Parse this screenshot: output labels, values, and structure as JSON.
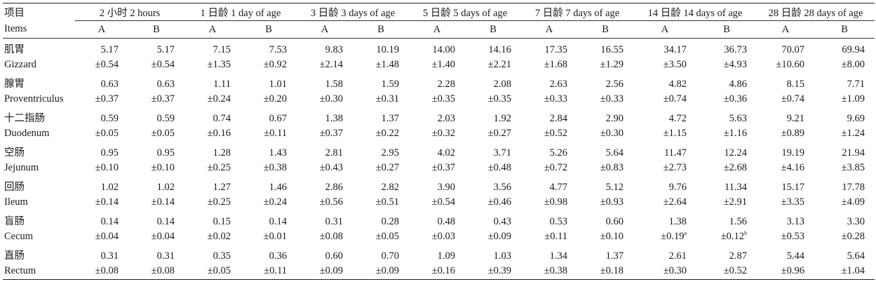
{
  "header": {
    "items_zh": "项目",
    "items_en": "Items",
    "groups": [
      "2 小时 2 hours",
      "1 日龄 1 day of age",
      "3 日龄 3 days of age",
      "5 日龄 5 days of age",
      "7 日龄 7 days of age",
      "14 日龄 14 days of age",
      "28 日龄 28 days of age"
    ],
    "sub": [
      "A",
      "B"
    ]
  },
  "rows": [
    {
      "zh": "肌胃",
      "en": "Gizzard",
      "means": [
        "5.17",
        "5.17",
        "7.15",
        "7.53",
        "9.83",
        "10.19",
        "14.00",
        "14.16",
        "17.35",
        "16.55",
        "34.17",
        "36.73",
        "70.07",
        "69.94"
      ],
      "sds": [
        "±0.54",
        "±0.54",
        "±1.35",
        "±0.92",
        "±2.14",
        "±1.48",
        "±1.40",
        "±2.21",
        "±1.68",
        "±1.29",
        "±3.50",
        "±4.93",
        "±10.60",
        "±8.00"
      ],
      "sups": [
        "",
        "",
        "",
        "",
        "",
        "",
        "",
        "",
        "",
        "",
        "",
        "",
        "",
        ""
      ]
    },
    {
      "zh": "腺胃",
      "en": "Proventriculus",
      "means": [
        "0.63",
        "0.63",
        "1.11",
        "1.01",
        "1.58",
        "1.59",
        "2.28",
        "2.08",
        "2.63",
        "2.56",
        "4.82",
        "4.86",
        "8.15",
        "7.71"
      ],
      "sds": [
        "±0.37",
        "±0.37",
        "±0.24",
        "±0.20",
        "±0.30",
        "±0.31",
        "±0.35",
        "±0.35",
        "±0.33",
        "±0.33",
        "±0.74",
        "±0.36",
        "±0.74",
        "±1.09"
      ],
      "sups": [
        "",
        "",
        "",
        "",
        "",
        "",
        "",
        "",
        "",
        "",
        "",
        "",
        "",
        ""
      ]
    },
    {
      "zh": "十二指肠",
      "en": "Duodenum",
      "means": [
        "0.59",
        "0.59",
        "0.74",
        "0.67",
        "1.38",
        "1.37",
        "2.03",
        "1.92",
        "2.84",
        "2.90",
        "4.72",
        "5.63",
        "9.21",
        "9.69"
      ],
      "sds": [
        "±0.05",
        "±0.05",
        "±0.16",
        "±0.11",
        "±0.37",
        "±0.22",
        "±0.32",
        "±0.27",
        "±0.52",
        "±0.30",
        "±1.15",
        "±1.16",
        "±0.89",
        "±1.24"
      ],
      "sups": [
        "",
        "",
        "",
        "",
        "",
        "",
        "",
        "",
        "",
        "",
        "",
        "",
        "",
        ""
      ]
    },
    {
      "zh": "空肠",
      "en": "Jejunum",
      "means": [
        "0.95",
        "0.95",
        "1.28",
        "1.43",
        "2.81",
        "2.95",
        "4.02",
        "3.71",
        "5.26",
        "5.64",
        "11.47",
        "12.24",
        "19.19",
        "21.94"
      ],
      "sds": [
        "±0.10",
        "±0.10",
        "±0.25",
        "±0.38",
        "±0.43",
        "±0.27",
        "±0.37",
        "±0.48",
        "±0.72",
        "±0.83",
        "±2.73",
        "±2.68",
        "±4.16",
        "±3.85"
      ],
      "sups": [
        "",
        "",
        "",
        "",
        "",
        "",
        "",
        "",
        "",
        "",
        "",
        "",
        "",
        ""
      ]
    },
    {
      "zh": "回肠",
      "en": "Ileum",
      "means": [
        "1.02",
        "1.02",
        "1.27",
        "1.46",
        "2.86",
        "2.82",
        "3.90",
        "3.56",
        "4.77",
        "5.12",
        "9.76",
        "11.34",
        "15.17",
        "17.78"
      ],
      "sds": [
        "±0.14",
        "±0.14",
        "±0.25",
        "±0.24",
        "±0.56",
        "±0.51",
        "±0.54",
        "±0.46",
        "±0.98",
        "±0.93",
        "±2.64",
        "±2.91",
        "±3.35",
        "±4.09"
      ],
      "sups": [
        "",
        "",
        "",
        "",
        "",
        "",
        "",
        "",
        "",
        "",
        "",
        "",
        "",
        ""
      ]
    },
    {
      "zh": "盲肠",
      "en": "Cecum",
      "means": [
        "0.14",
        "0.14",
        "0.15",
        "0.14",
        "0.31",
        "0.28",
        "0.48",
        "0.43",
        "0.53",
        "0.60",
        "1.38",
        "1.56",
        "3.13",
        "3.30"
      ],
      "sds": [
        "±0.04",
        "±0.04",
        "±0.02",
        "±0.01",
        "±0.08",
        "±0.05",
        "±0.03",
        "±0.09",
        "±0.11",
        "±0.10",
        "±0.19",
        "±0.12",
        "±0.53",
        "±0.28"
      ],
      "sups": [
        "",
        "",
        "",
        "",
        "",
        "",
        "",
        "",
        "",
        "",
        "a",
        "b",
        "",
        ""
      ]
    },
    {
      "zh": "直肠",
      "en": "Rectum",
      "means": [
        "0.31",
        "0.31",
        "0.35",
        "0.36",
        "0.60",
        "0.70",
        "1.09",
        "1.03",
        "1.34",
        "1.37",
        "2.61",
        "2.87",
        "5.44",
        "5.64"
      ],
      "sds": [
        "±0.08",
        "±0.08",
        "±0.05",
        "±0.11",
        "±0.09",
        "±0.09",
        "±0.16",
        "±0.39",
        "±0.38",
        "±0.18",
        "±0.30",
        "±0.52",
        "±0.96",
        "±1.04"
      ],
      "sups": [
        "",
        "",
        "",
        "",
        "",
        "",
        "",
        "",
        "",
        "",
        "",
        "",
        "",
        ""
      ]
    }
  ]
}
